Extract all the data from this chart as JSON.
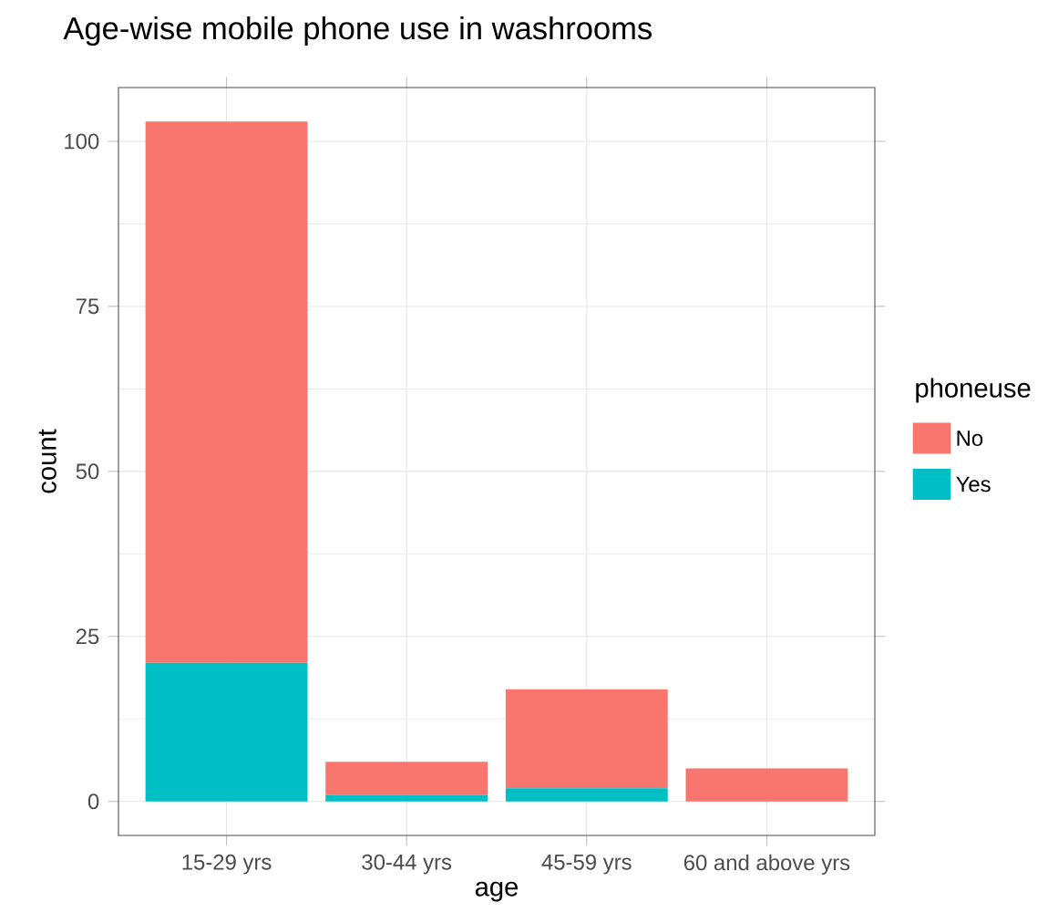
{
  "chart_data": {
    "type": "bar",
    "title": "Age-wise mobile phone use in washrooms",
    "xlabel": "age",
    "ylabel": "count",
    "legend_title": "phoneuse",
    "categories": [
      "15-29 yrs",
      "30-44 yrs",
      "45-59 yrs",
      "60 and above yrs"
    ],
    "series": [
      {
        "name": "Yes",
        "color": "#00bfc4",
        "values": [
          21,
          1,
          2,
          0
        ]
      },
      {
        "name": "No",
        "color": "#f8766d",
        "values": [
          82,
          5,
          15,
          5
        ]
      }
    ],
    "stacked": true,
    "ylim": [
      -5.15,
      108.15
    ],
    "yticks": [
      0,
      25,
      50,
      75,
      100
    ],
    "grid": true,
    "legend": "right"
  }
}
